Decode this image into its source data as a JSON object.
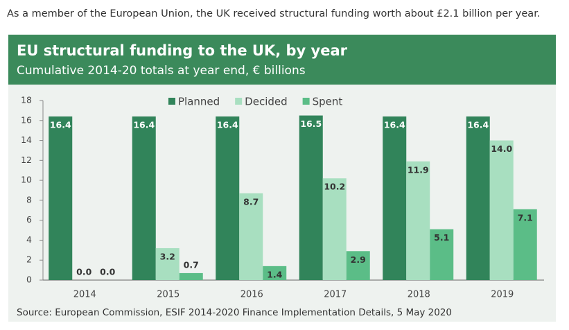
{
  "intro": "As a member of the European Union, the UK received structural funding worth about £2.1 billion per year.",
  "chart_data": {
    "type": "bar",
    "title": "EU structural funding to the UK, by year",
    "subtitle": "Cumulative 2014-20 totals at year end, € billions",
    "source": "Source: European Commission, ESIF 2014-2020 Finance Implementation Details, 5 May 2020",
    "categories": [
      "2014",
      "2015",
      "2016",
      "2017",
      "2018",
      "2019"
    ],
    "series": [
      {
        "name": "Planned",
        "color": "#31845a",
        "values": [
          16.4,
          16.4,
          16.4,
          16.5,
          16.4,
          16.4
        ],
        "value_labels": [
          "16.4",
          "16.4",
          "16.4",
          "16.5",
          "16.4",
          "16.4"
        ]
      },
      {
        "name": "Decided",
        "color": "#a8dfc0",
        "values": [
          0,
          3.2,
          8.7,
          10.2,
          11.9,
          14.0
        ],
        "value_labels": [
          "0.0",
          "3.2",
          "8.7",
          "10.2",
          "11.9",
          "14.0"
        ]
      },
      {
        "name": "Spent",
        "color": "#5bbd87",
        "values": [
          0,
          0.7,
          1.4,
          2.9,
          5.1,
          7.1
        ],
        "value_labels": [
          "0.0",
          "0.7",
          "1.4",
          "2.9",
          "5.1",
          "7.1"
        ]
      }
    ],
    "ylim": [
      0,
      18
    ],
    "yticks": [
      0,
      2,
      4,
      6,
      8,
      10,
      12,
      14,
      16,
      18
    ],
    "grid": false,
    "legend": "top"
  }
}
